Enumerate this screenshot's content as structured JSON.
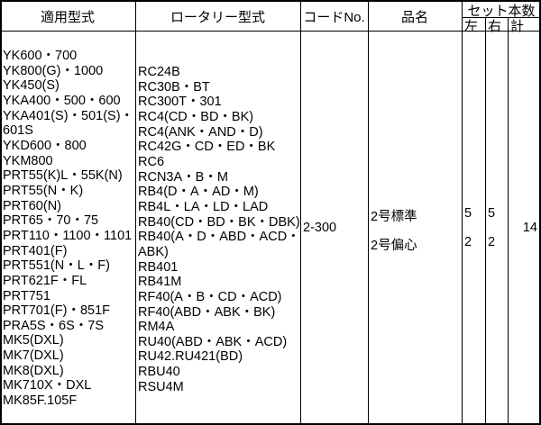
{
  "header": {
    "applicable_model": "適用型式",
    "rotary_model": "ロータリー型式",
    "code_no": "コードNo.",
    "product_name": "品名",
    "set_count": "セット本数",
    "left": "左",
    "right": "右",
    "total": "計"
  },
  "applicable_models": [
    "YK600・700",
    "YK800(G)・1000",
    "YK450(S)",
    "YKA400・500・600",
    "YKA401(S)・501(S)・",
    "601S",
    "YKD600・800",
    "YKM800",
    "PRT55(K)L・55K(N)",
    "PRT55(N・K)",
    "PRT60(N)",
    "PRT65・70・75",
    "PRT110・1100・1101",
    "PRT401(F)",
    "PRT551(N・L・F)",
    "PRT621F・FL",
    "PRT751",
    "PRT701(F)・851F",
    "PRA5S・6S・7S",
    "MK5(DXL)",
    "MK7(DXL)",
    "MK8(DXL)",
    "MK710X・DXL",
    "MK85F.105F"
  ],
  "rotary_models": [
    "RC24B",
    "RC30B・BT",
    "RC300T・301",
    "RC4(CD・BD・BK)",
    "RC4(ANK・AND・D)",
    "RC42G・CD・ED・BK",
    "RC6",
    "RCN3A・B・M",
    "RB4(D・A・AD・M)",
    "RB4L・LA・LD・LAD",
    "RB40(CD・BD・BK・DBK)",
    "RB40(A・D・ABD・ACD・",
    "ABK)",
    "RB401",
    "RB41M",
    "RF40(A・B・CD・ACD)",
    "RF40(ABD・ABK・BK)",
    "RM4A",
    "RU40(ABD・ABK・ACD)",
    "RU42.RU421(BD)",
    "RBU40",
    "RSU4M"
  ],
  "code_no": "2-300",
  "items": [
    {
      "name": "2号標準",
      "left": "5",
      "right": "5"
    },
    {
      "name": "2号偏心",
      "left": "2",
      "right": "2"
    }
  ],
  "total": "14"
}
